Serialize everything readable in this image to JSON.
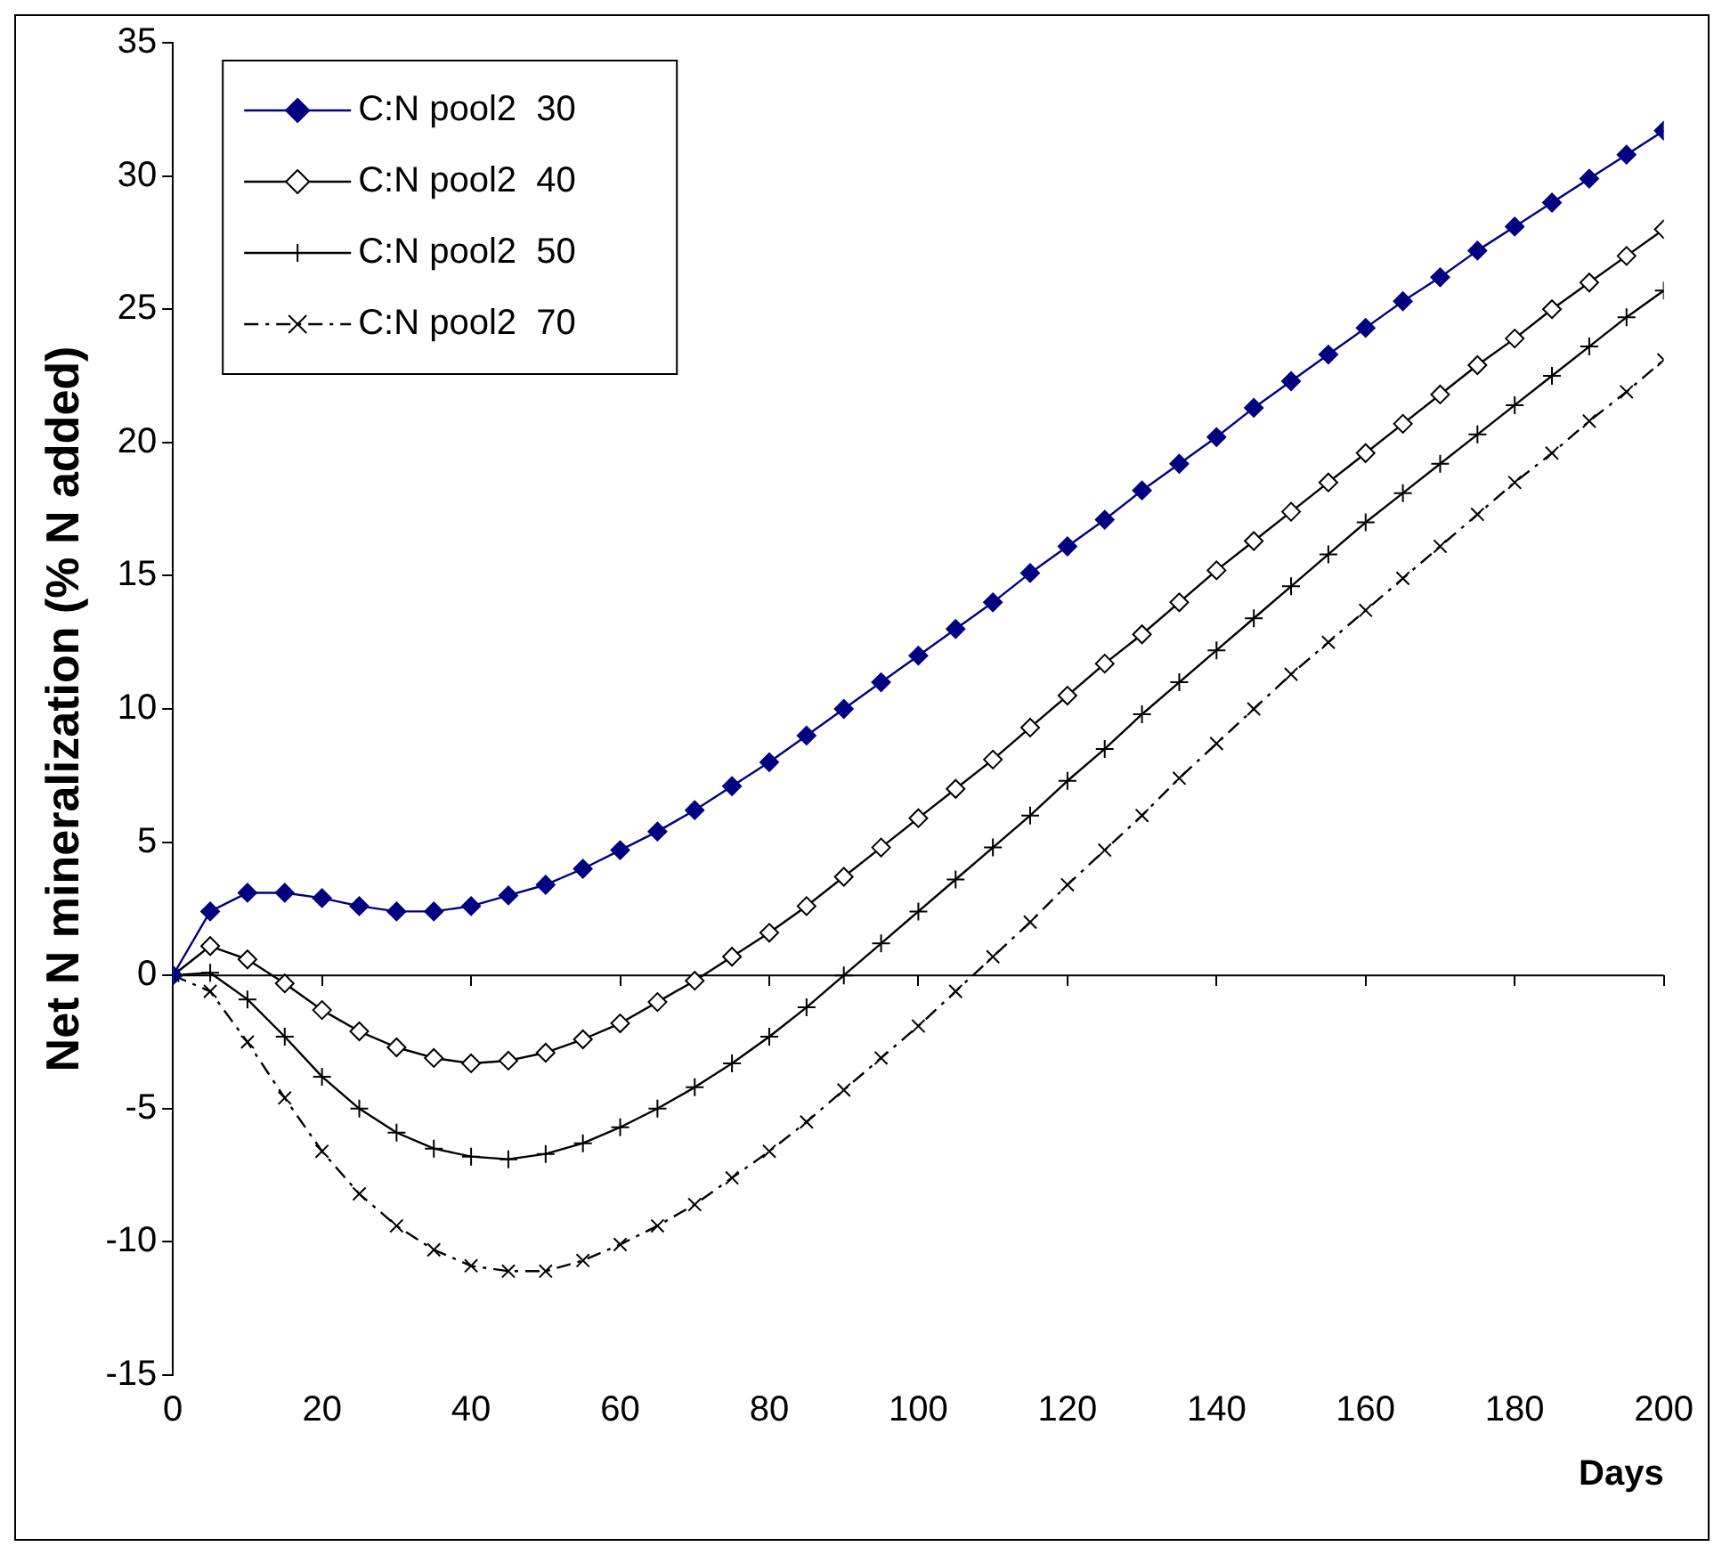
{
  "chart_data": {
    "type": "line",
    "xlabel": "Days",
    "ylabel": "Net N mineralization (% N added)",
    "x": [
      0,
      5,
      10,
      15,
      20,
      25,
      30,
      35,
      40,
      45,
      50,
      55,
      60,
      65,
      70,
      75,
      80,
      85,
      90,
      95,
      100,
      105,
      110,
      115,
      120,
      125,
      130,
      135,
      140,
      145,
      150,
      155,
      160,
      165,
      170,
      175,
      180,
      185,
      190,
      195,
      200
    ],
    "xlim": [
      0,
      200
    ],
    "xticks": [
      0,
      20,
      40,
      60,
      80,
      100,
      120,
      140,
      160,
      180,
      200
    ],
    "ylim": [
      -15,
      35
    ],
    "yticks": [
      -15,
      -10,
      -5,
      0,
      5,
      10,
      15,
      20,
      25,
      30,
      35
    ],
    "grid": false,
    "legend": "top left",
    "ref_lines": [
      {
        "axis": "y",
        "value": 0
      }
    ],
    "series": [
      {
        "name": "C:N pool2  30",
        "color": "#000080",
        "marker": "diamond",
        "line_style": "solid",
        "values": [
          0,
          2.4,
          3.1,
          3.1,
          2.9,
          2.6,
          2.4,
          2.4,
          2.6,
          3.0,
          3.4,
          4.0,
          4.7,
          5.4,
          6.2,
          7.1,
          8.0,
          9.0,
          10.0,
          11.0,
          12.0,
          13.0,
          14.0,
          15.1,
          16.1,
          17.1,
          18.2,
          19.2,
          20.2,
          21.3,
          22.3,
          23.3,
          24.3,
          25.3,
          26.2,
          27.2,
          28.1,
          29.0,
          29.9,
          30.8,
          31.7
        ]
      },
      {
        "name": "C:N pool2  40",
        "color": "#000000",
        "marker": "diamond",
        "line_style": "solid",
        "values": [
          0,
          1.1,
          0.6,
          -0.3,
          -1.3,
          -2.1,
          -2.7,
          -3.1,
          -3.3,
          -3.2,
          -2.9,
          -2.4,
          -1.8,
          -1.0,
          -0.2,
          0.7,
          1.6,
          2.6,
          3.7,
          4.8,
          5.9,
          7.0,
          8.1,
          9.3,
          10.5,
          11.7,
          12.8,
          14.0,
          15.2,
          16.3,
          17.4,
          18.5,
          19.6,
          20.7,
          21.8,
          22.9,
          23.9,
          25.0,
          26.0,
          27.0,
          28.0
        ]
      },
      {
        "name": "C:N pool2  50",
        "color": "#000000",
        "marker": "cross",
        "line_style": "solid",
        "values": [
          0,
          0.1,
          -0.9,
          -2.3,
          -3.8,
          -5.0,
          -5.9,
          -6.5,
          -6.8,
          -6.9,
          -6.7,
          -6.3,
          -5.7,
          -5.0,
          -4.2,
          -3.3,
          -2.3,
          -1.2,
          0.0,
          1.2,
          2.4,
          3.6,
          4.8,
          6.0,
          7.3,
          8.5,
          9.8,
          11.0,
          12.2,
          13.4,
          14.6,
          15.8,
          17.0,
          18.1,
          19.2,
          20.3,
          21.4,
          22.5,
          23.6,
          24.7,
          25.7
        ]
      },
      {
        "name": "C:N pool2  70",
        "color": "#000000",
        "marker": "cross",
        "line_style": "dashed",
        "values": [
          0,
          -0.6,
          -2.5,
          -4.6,
          -6.6,
          -8.2,
          -9.4,
          -10.3,
          -10.9,
          -11.1,
          -11.1,
          -10.7,
          -10.1,
          -9.4,
          -8.6,
          -7.6,
          -6.6,
          -5.5,
          -4.3,
          -3.1,
          -1.9,
          -0.6,
          0.7,
          2.0,
          3.4,
          4.7,
          6.0,
          7.4,
          8.7,
          10.0,
          11.3,
          12.5,
          13.7,
          14.9,
          16.1,
          17.3,
          18.5,
          19.6,
          20.8,
          21.9,
          23.1
        ]
      }
    ]
  }
}
